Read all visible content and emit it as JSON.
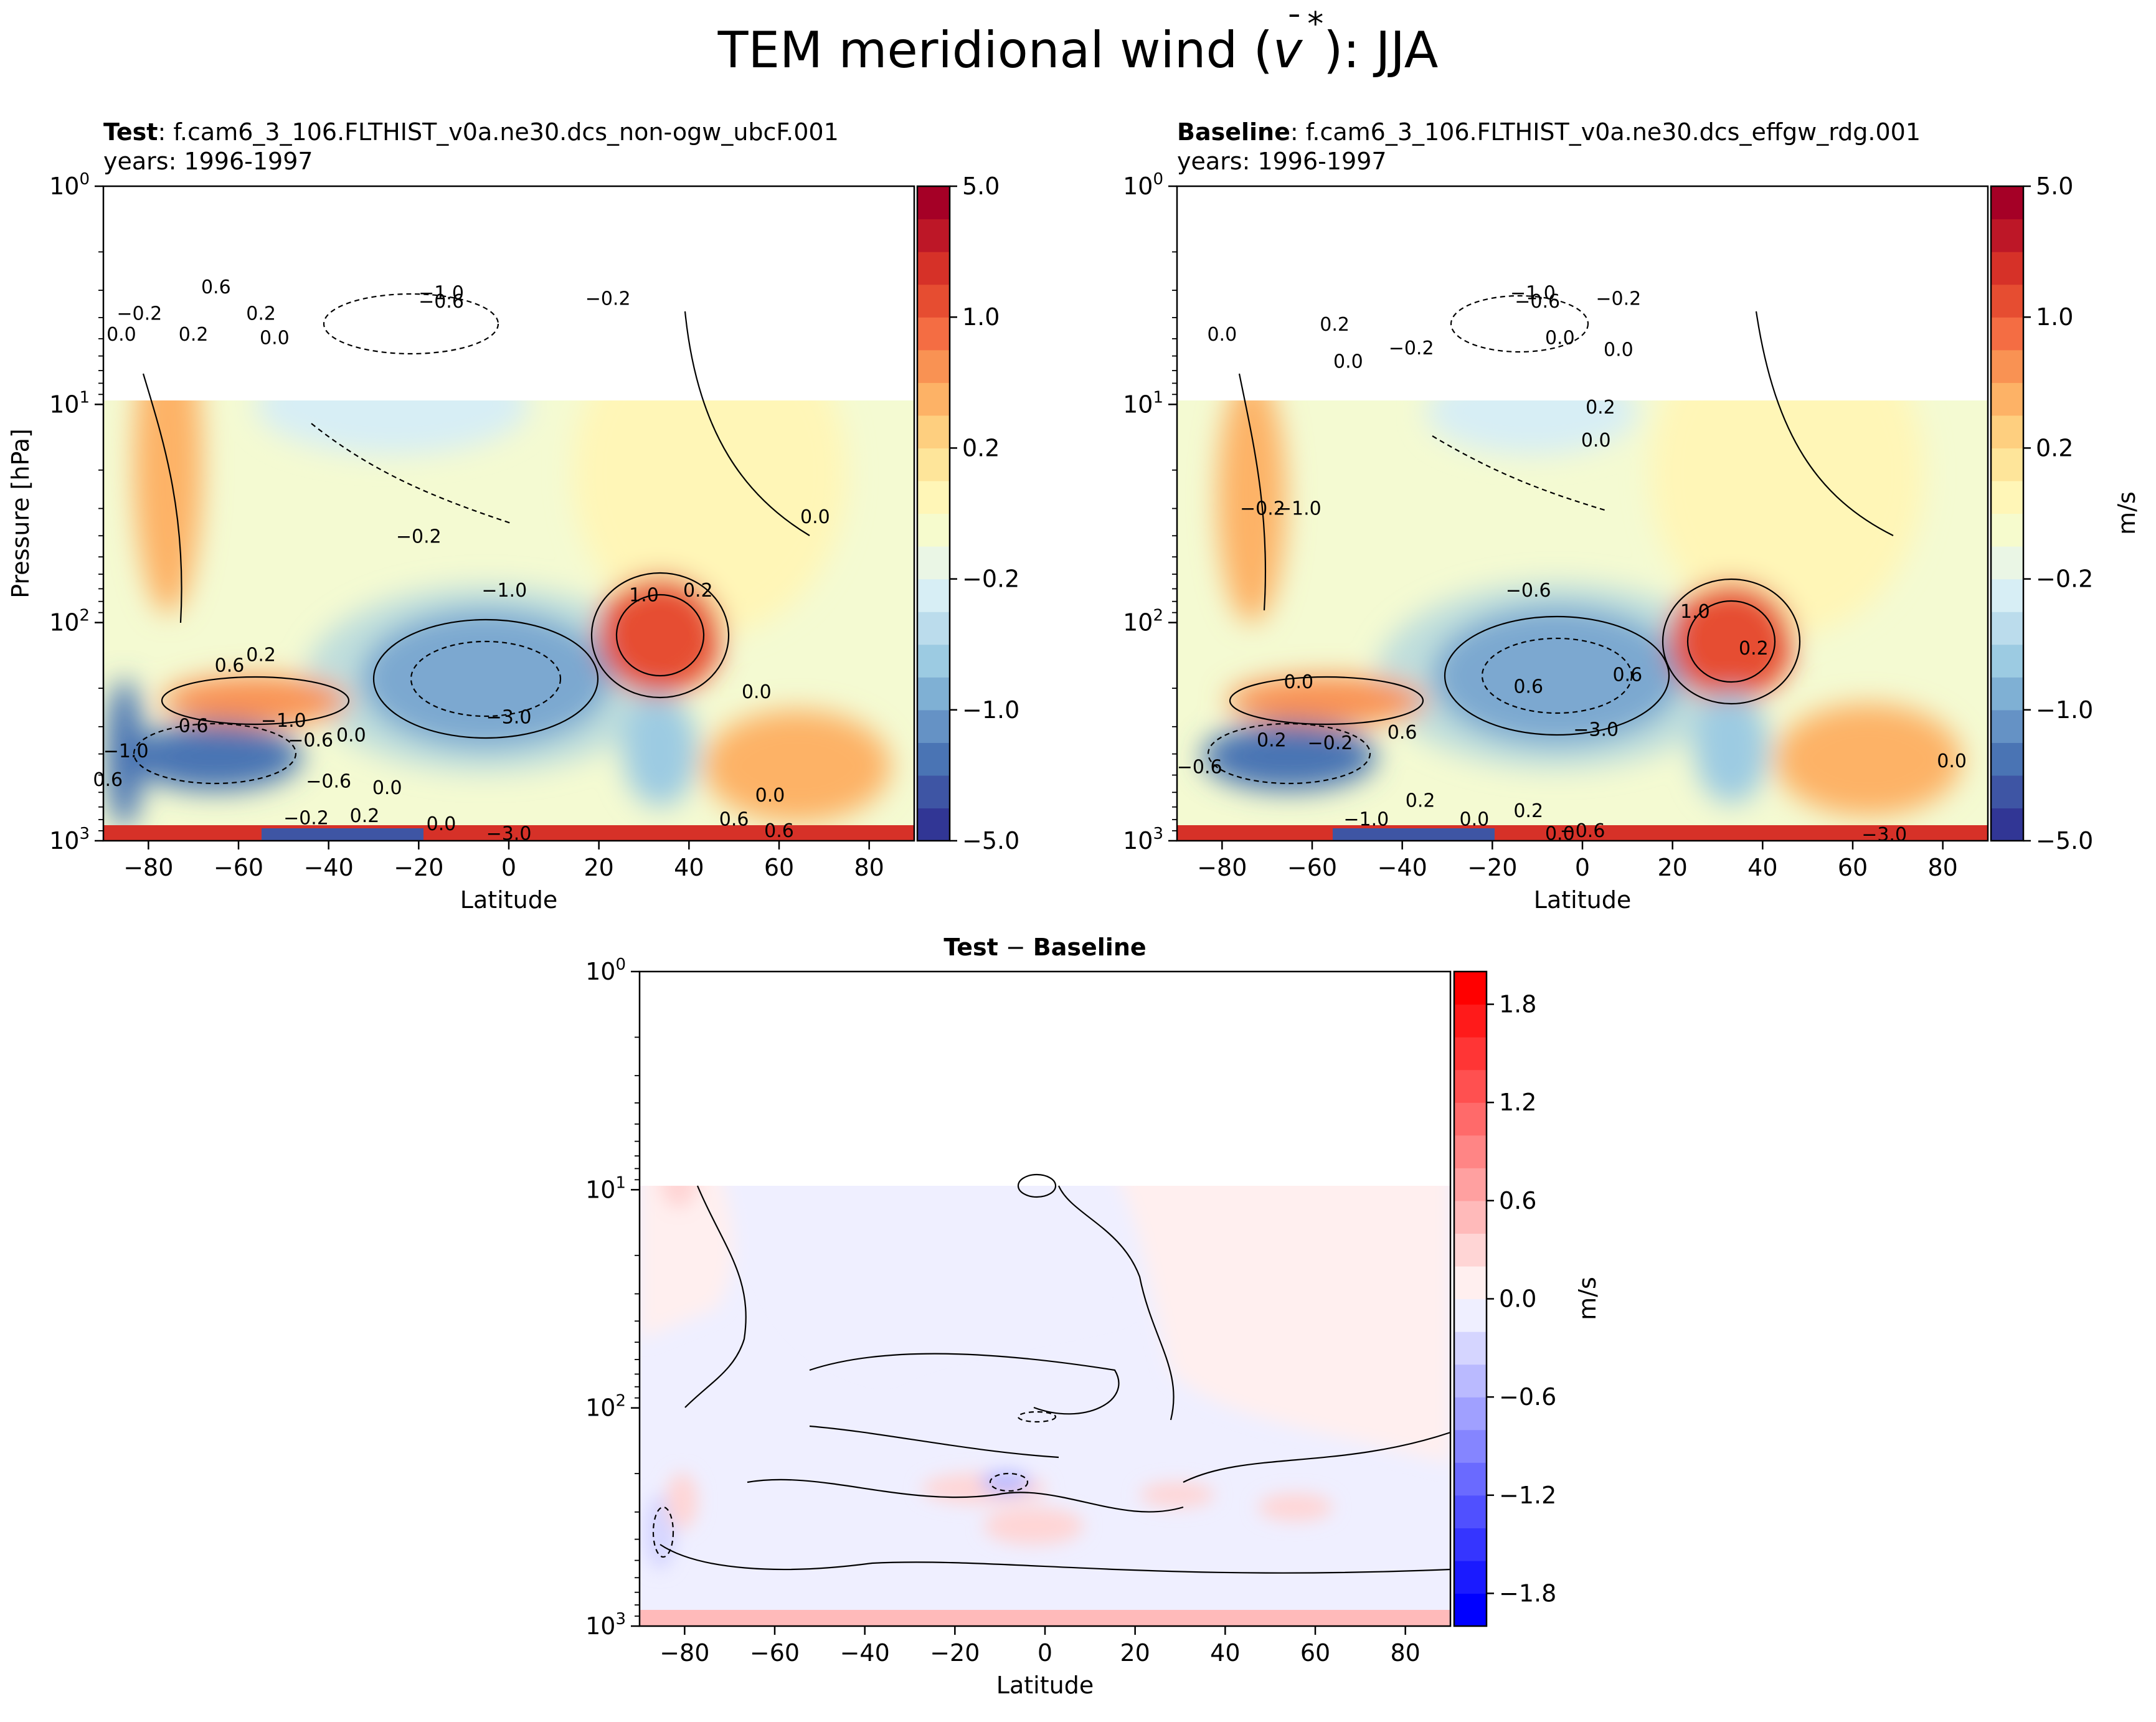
{
  "figure": {
    "title_main": "TEM meridional wind (",
    "title_var": "v",
    "title_bar": "¯",
    "title_star": "*",
    "title_end": "): JJA"
  },
  "panels": {
    "test": {
      "title_bold": "Test",
      "title_rest": ": f.cam6_3_106.FLTHIST_v0a.ne30.dcs_non-ogw_ubcF.001",
      "years": "years: 1996-1997"
    },
    "baseline": {
      "title_bold": "Baseline",
      "title_rest": ": f.cam6_3_106.FLTHIST_v0a.ne30.dcs_effgw_rdg.001",
      "years": "years: 1996-1997"
    },
    "diff": {
      "title_bold_a": "Test",
      "title_sep": " − ",
      "title_bold_b": "Baseline"
    }
  },
  "axes": {
    "ylabel": "Pressure [hPa]",
    "xlabel": "Latitude",
    "y_ticks": [
      {
        "base": "10",
        "exp": "0"
      },
      {
        "base": "10",
        "exp": "1"
      },
      {
        "base": "10",
        "exp": "2"
      },
      {
        "base": "10",
        "exp": "3"
      }
    ],
    "x_ticks": [
      "−80",
      "−60",
      "−40",
      "−20",
      "0",
      "20",
      "40",
      "60",
      "80"
    ]
  },
  "colorbars": {
    "main": {
      "unit": "m/s",
      "ticks": [
        "5.0",
        "1.0",
        "0.2",
        "−0.2",
        "−1.0",
        "−5.0"
      ],
      "colors": [
        "#313695",
        "#3e55a4",
        "#4a74b4",
        "#6592c5",
        "#7fb0d4",
        "#9ccbe2",
        "#bbdcec",
        "#d7eef5",
        "#eaf6e5",
        "#f6fbcd",
        "#fff6b7",
        "#fee59a",
        "#fecf7f",
        "#fdb266",
        "#f99253",
        "#f46d43",
        "#e64d31",
        "#d63128",
        "#bd1727",
        "#a50026"
      ]
    },
    "diff": {
      "unit": "m/s",
      "ticks": [
        "1.8",
        "1.2",
        "0.6",
        "0.0",
        "−0.6",
        "−1.2",
        "−1.8"
      ],
      "colors": [
        "#0000ff",
        "#1a1aff",
        "#3535ff",
        "#5050ff",
        "#6a6aff",
        "#8585ff",
        "#a0a0ff",
        "#babaff",
        "#d5d5ff",
        "#efefff",
        "#ffefef",
        "#ffd5d5",
        "#ffbaba",
        "#ffa0a0",
        "#ff8585",
        "#ff6a6a",
        "#ff5050",
        "#ff3535",
        "#ff1a1a",
        "#ff0000"
      ]
    }
  },
  "chart_data": [
    {
      "type": "heatmap",
      "name": "Test",
      "x": "latitude",
      "xlim": [
        -90,
        90
      ],
      "ylim": [
        1000,
        1
      ],
      "yscale": "log",
      "contour_labels": [
        "0.6",
        "−0.2",
        "0.2",
        "0.0",
        "0.2",
        "0.0",
        "−1.0",
        "−0.6",
        "−0.2",
        "0.0",
        "−0.2",
        "−1.0",
        "1.0",
        "0.2",
        "0.2",
        "0.6",
        "−3.0",
        "0.0",
        "0.6",
        "−1.0",
        "−0.6",
        "0.0",
        "−1.0",
        "0.6",
        "−0.6",
        "0.0",
        "−0.2",
        "0.2",
        "0.0",
        "−3.0",
        "0.0",
        "0.6",
        "0.6"
      ],
      "features": [
        {
          "lat": -5,
          "hPa": 185,
          "value": -3.0
        },
        {
          "lat": 30,
          "hPa": 110,
          "value": 1.0
        },
        {
          "lat": -10,
          "hPa": 4.2,
          "value": -1.0
        },
        {
          "lat": -70,
          "hPa": 10,
          "value": 0.6
        },
        {
          "lat": -65,
          "hPa": 340,
          "value": -1.0
        }
      ]
    },
    {
      "type": "heatmap",
      "name": "Baseline",
      "x": "latitude",
      "xlim": [
        -90,
        90
      ],
      "ylim": [
        1000,
        1
      ],
      "yscale": "log",
      "contour_labels": [
        "0.0",
        "0.2",
        "−1.0",
        "−0.6",
        "−0.2",
        "0.0",
        "0.0",
        "−0.2",
        "0.0",
        "0.2",
        "0.0",
        "−0.2",
        "−1.0",
        "−0.6",
        "1.0",
        "0.0",
        "0.6",
        "0.2",
        "0.6",
        "−3.0",
        "0.6",
        "0.2",
        "−0.2",
        "−0.6",
        "−1.0",
        "0.2",
        "0.0",
        "0.2",
        "−0.6",
        "0.0",
        "−3.0",
        "0.0"
      ],
      "features": [
        {
          "lat": -5,
          "hPa": 180,
          "value": -3.0
        },
        {
          "lat": 32,
          "hPa": 120,
          "value": 1.0
        },
        {
          "lat": -8,
          "hPa": 4.2,
          "value": -1.0
        },
        {
          "lat": -65,
          "hPa": 340,
          "value": -1.0
        }
      ]
    },
    {
      "type": "heatmap",
      "name": "Test − Baseline",
      "x": "latitude",
      "xlim": [
        -90,
        90
      ],
      "ylim": [
        1000,
        1
      ],
      "yscale": "log",
      "note": "differences mostly within ±0.2 m/s"
    }
  ]
}
